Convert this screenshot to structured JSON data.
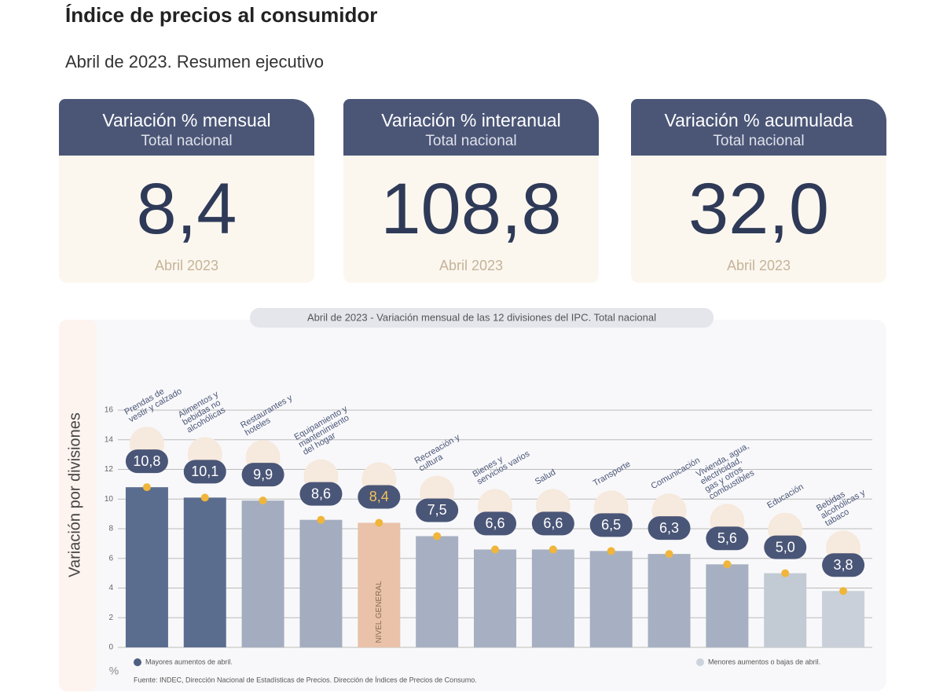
{
  "title": "Índice de precios al consumidor",
  "subtitle": "Abril de 2023. Resumen ejecutivo",
  "cards": [
    {
      "heading": "Variación % mensual",
      "subheading": "Total nacional",
      "value": "8,4",
      "period": "Abril 2023"
    },
    {
      "heading": "Variación % interanual",
      "subheading": "Total nacional",
      "value": "108,8",
      "period": "Abril 2023"
    },
    {
      "heading": "Variación % acumulada",
      "subheading": "Total nacional",
      "value": "32,0",
      "period": "Abril 2023"
    }
  ],
  "chart_data": {
    "type": "bar",
    "title": "Abril de 2023 - Variación mensual de las 12 divisiones del IPC. Total nacional",
    "ylabel": "Variación por divisiones",
    "yunit": "%",
    "categories": [
      "Prendas de vestir y calzado",
      "Alimentos y bebidas no alcohólicas",
      "Restaurantes y hoteles",
      "Equipamiento y mantenimiento del hogar",
      "NIVEL GENERAL",
      "Recreación y cultura",
      "Bienes y servicios varios",
      "Salud",
      "Transporte",
      "Comunicación",
      "Vivienda, agua, electricidad, gas y otros combustibles",
      "Educación",
      "Bebidas alcohólicas y tabaco"
    ],
    "values": [
      10.8,
      10.1,
      9.9,
      8.6,
      8.4,
      7.5,
      6.6,
      6.6,
      6.5,
      6.3,
      5.6,
      5.0,
      3.8
    ],
    "value_labels": [
      "10,8",
      "10,1",
      "9,9",
      "8,6",
      "8,4",
      "7,5",
      "6,6",
      "6,6",
      "6,5",
      "6,3",
      "5,6",
      "5,0",
      "3,8"
    ],
    "colors": [
      "#5b6d8f",
      "#5b6d8f",
      "#a3adbf",
      "#a3adbf",
      "#e9c2a9",
      "#a6b0c2",
      "#a6b0c2",
      "#a6b0c2",
      "#a6b0c2",
      "#a6b0c2",
      "#a6b0c2",
      "#c2cad4",
      "#c9d0d9"
    ],
    "ylim": [
      0,
      16
    ],
    "yticks": [
      0,
      2,
      4,
      6,
      8,
      10,
      12,
      14,
      16
    ],
    "grid": true,
    "legend": [
      {
        "name": "Mayores aumentos de abril.",
        "color": "#4f5f80"
      },
      {
        "name": "Menores aumentos o bajas de abril.",
        "color": "#cdd3dc"
      }
    ],
    "source": "Fuente: INDEC, Dirección Nacional de Estadísticas de Precios. Dirección de Índices de Precios de Consumo."
  }
}
